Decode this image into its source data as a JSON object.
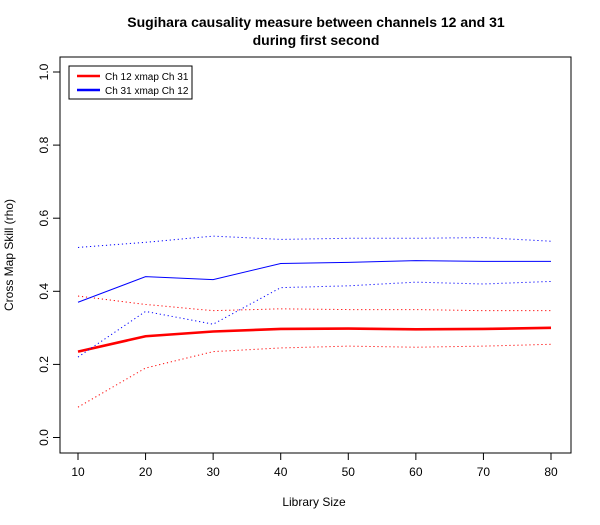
{
  "chart_data": {
    "type": "line",
    "title": [
      "Sugihara causality measure between channels  12 and 31",
      "during first second"
    ],
    "xlabel": "Library Size",
    "ylabel": "Cross Map Skill (rho)",
    "xlim": [
      10,
      80
    ],
    "ylim": [
      0,
      1
    ],
    "x_ticks": [
      "10",
      "20",
      "30",
      "40",
      "50",
      "60",
      "70",
      "80"
    ],
    "y_ticks": [
      "0.0",
      "0.2",
      "0.4",
      "0.6",
      "0.8",
      "1.0"
    ],
    "grid": false,
    "legend_position": "top-left",
    "x": [
      10,
      20,
      30,
      40,
      50,
      60,
      70,
      80
    ],
    "series": [
      {
        "name": "Ch 12 xmap Ch 31",
        "color": "#ff0000",
        "values": [
          0.235,
          0.277,
          0.29,
          0.297,
          0.298,
          0.296,
          0.297,
          0.3
        ],
        "lower": [
          0.083,
          0.19,
          0.235,
          0.245,
          0.25,
          0.247,
          0.25,
          0.255
        ],
        "upper": [
          0.387,
          0.364,
          0.347,
          0.352,
          0.35,
          0.35,
          0.347,
          0.347
        ]
      },
      {
        "name": "Ch 31  xmap Ch 12",
        "color": "#0000ff",
        "values": [
          0.37,
          0.44,
          0.432,
          0.476,
          0.479,
          0.484,
          0.482,
          0.482
        ],
        "lower": [
          0.22,
          0.345,
          0.31,
          0.41,
          0.415,
          0.425,
          0.42,
          0.427
        ],
        "upper": [
          0.52,
          0.534,
          0.551,
          0.542,
          0.545,
          0.545,
          0.547,
          0.537
        ]
      }
    ]
  }
}
